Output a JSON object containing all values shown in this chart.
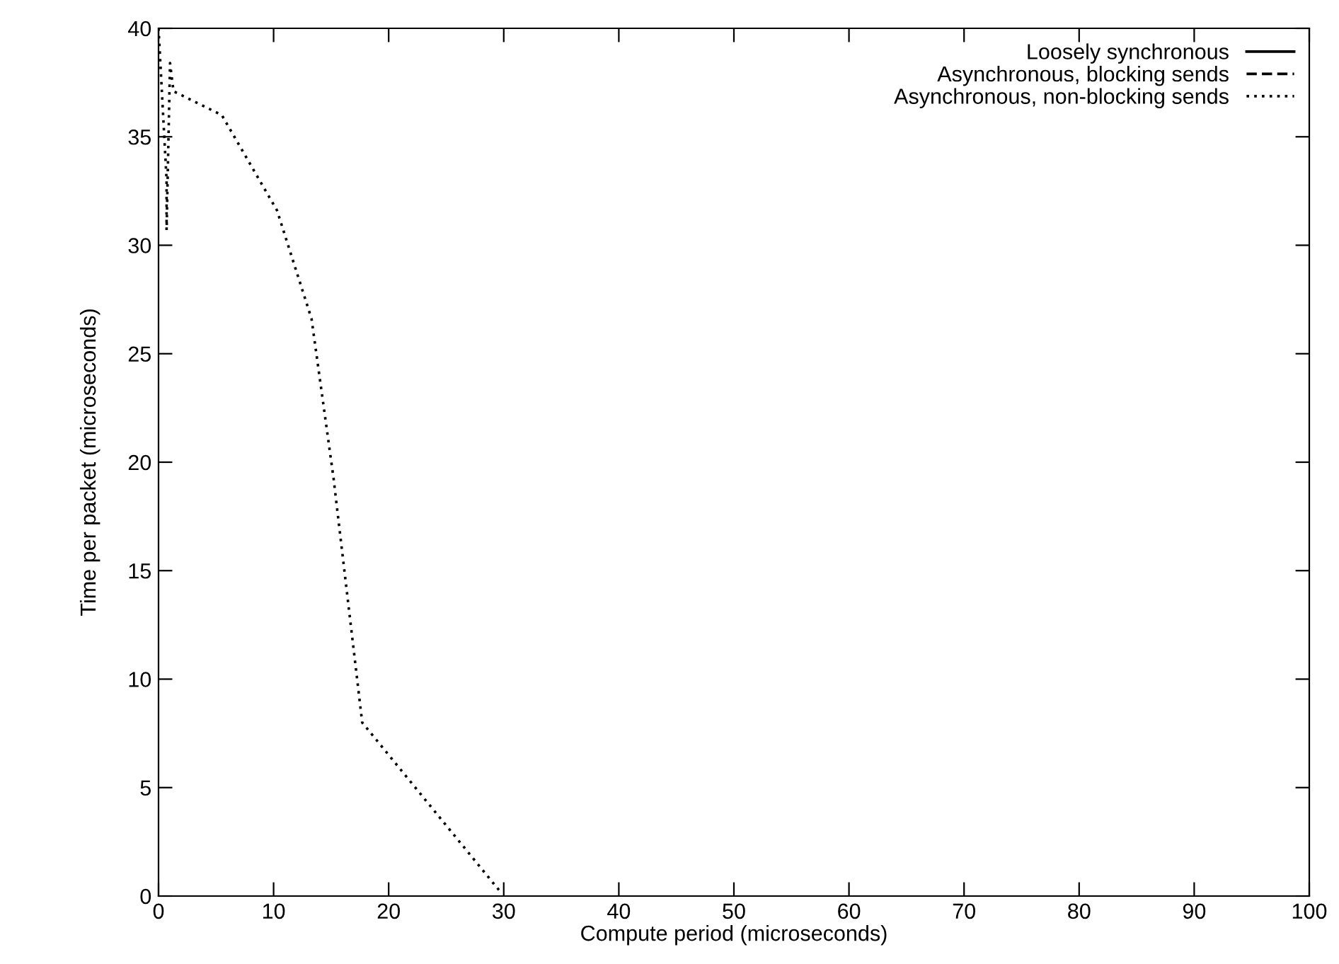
{
  "chart_data": {
    "type": "line",
    "xlabel": "Compute period (microseconds)",
    "ylabel": "Time per packet (microseconds)",
    "series": [
      {
        "name": "Loosely synchronous",
        "color": "#000000",
        "line_style": "solid"
      },
      {
        "name": "Asynchronous, blocking sends",
        "color": "#000000",
        "line_style": "dashed"
      },
      {
        "name": "Asynchronous, non-blocking sends",
        "color": "#000000",
        "line_style": "dotted",
        "x": [
          0,
          0.3,
          0.7,
          0.7,
          1.0,
          1.3,
          5.5,
          10.3,
          13.3,
          15.2,
          17.7,
          29.7
        ],
        "values": [
          40,
          37,
          33,
          30.7,
          38.4,
          37.1,
          36,
          31.6,
          26.6,
          19.3,
          8,
          0.2
        ]
      }
    ],
    "xlim": [
      0,
      100
    ],
    "xticks": [
      0,
      10,
      20,
      30,
      40,
      50,
      60,
      70,
      80,
      90,
      100
    ],
    "ylim": [
      0,
      40
    ],
    "yticks": [
      0,
      5,
      10,
      15,
      20,
      25,
      30,
      35,
      40
    ],
    "legend": "top right",
    "grid": false,
    "marker": "none"
  }
}
